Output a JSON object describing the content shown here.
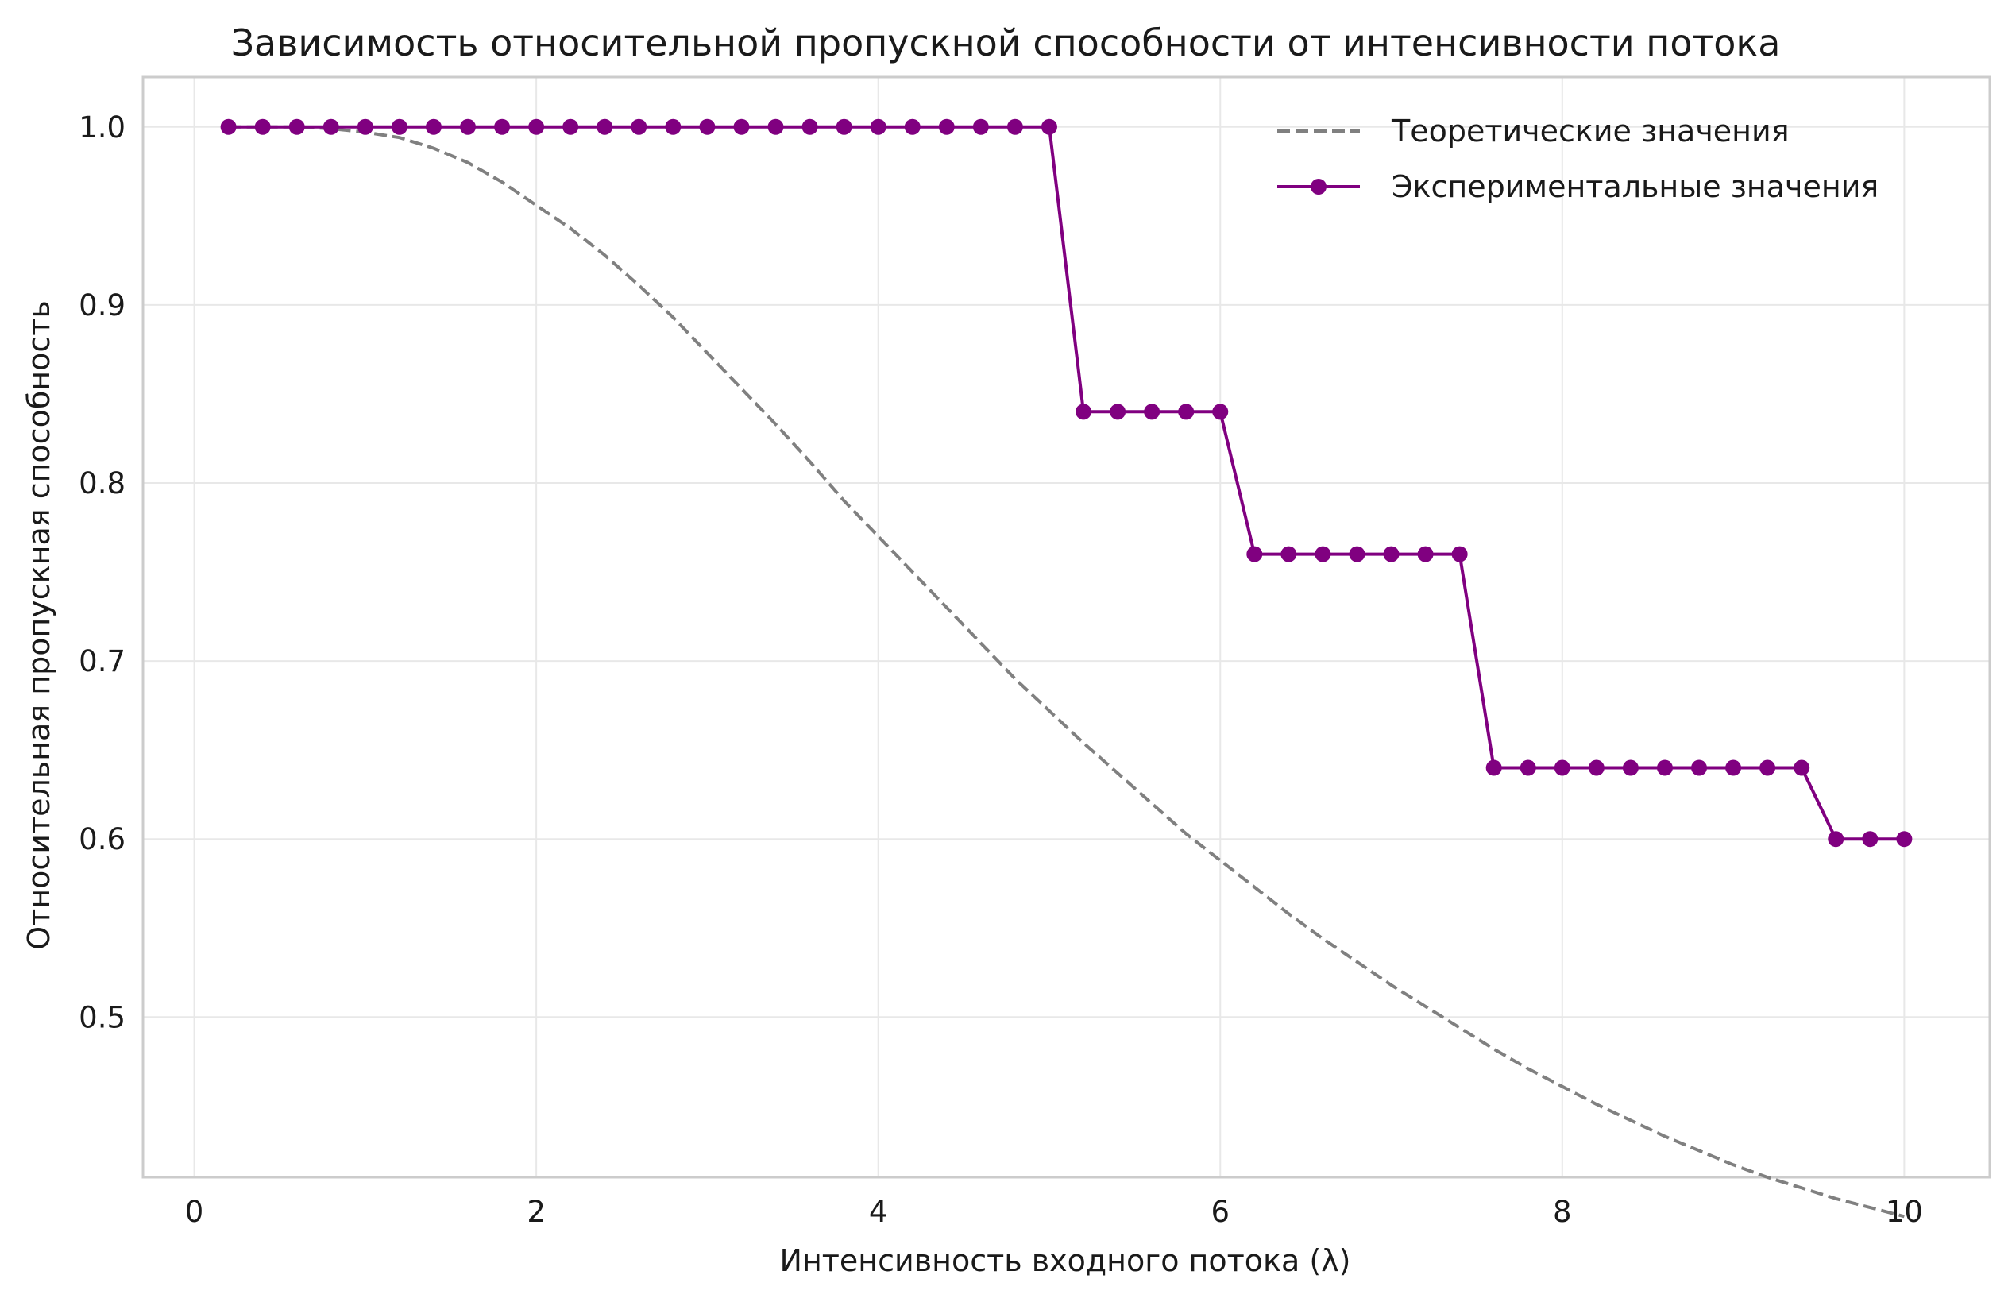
{
  "chart_data": {
    "type": "line",
    "title": "Зависимость относительной пропускной способности от интенсивности потока",
    "xlabel": "Интенсивность входного потока (λ)",
    "ylabel": "Относительная пропускная способность",
    "xlim": [
      -0.3,
      10.5
    ],
    "ylim": [
      0.41,
      1.028
    ],
    "xticks": [
      0,
      2,
      4,
      6,
      8,
      10
    ],
    "xtick_labels": [
      "0",
      "2",
      "4",
      "6",
      "8",
      "10"
    ],
    "yticks": [
      0.5,
      0.6,
      0.7,
      0.8,
      0.9,
      1.0
    ],
    "ytick_labels": [
      "0.5",
      "0.6",
      "0.7",
      "0.8",
      "0.9",
      "1.0"
    ],
    "grid": true,
    "legend_position": "top-right",
    "colors": {
      "theoretical": "#808080",
      "experimental": "#800080"
    },
    "series": [
      {
        "name": "Теоретические значения",
        "style": "dashed",
        "x": [
          0.2,
          0.4,
          0.6,
          0.8,
          1.0,
          1.2,
          1.4,
          1.6,
          1.8,
          2.0,
          2.2,
          2.4,
          2.6,
          2.8,
          3.0,
          3.2,
          3.4,
          3.6,
          3.8,
          4.0,
          4.2,
          4.4,
          4.6,
          4.8,
          5.0,
          5.2,
          5.4,
          5.6,
          5.8,
          6.0,
          6.2,
          6.4,
          6.6,
          6.8,
          7.0,
          7.2,
          7.4,
          7.6,
          7.8,
          8.0,
          8.2,
          8.4,
          8.6,
          8.8,
          9.0,
          9.2,
          9.4,
          9.6,
          9.8,
          10.0
        ],
        "y": [
          1.0,
          1.0,
          1.0,
          0.999,
          0.997,
          0.994,
          0.988,
          0.98,
          0.969,
          0.956,
          0.943,
          0.928,
          0.911,
          0.893,
          0.873,
          0.853,
          0.833,
          0.812,
          0.79,
          0.77,
          0.75,
          0.73,
          0.71,
          0.69,
          0.672,
          0.654,
          0.637,
          0.62,
          0.603,
          0.588,
          0.573,
          0.558,
          0.544,
          0.531,
          0.518,
          0.506,
          0.494,
          0.482,
          0.471,
          0.461,
          0.451,
          0.442,
          0.433,
          0.425,
          0.417,
          0.41,
          0.404,
          0.398,
          0.393,
          0.388
        ]
      },
      {
        "name": "Экспериментальные значения",
        "style": "solid-markers",
        "x": [
          0.2,
          0.4,
          0.6,
          0.8,
          1.0,
          1.2,
          1.4,
          1.6,
          1.8,
          2.0,
          2.2,
          2.4,
          2.6,
          2.8,
          3.0,
          3.2,
          3.4,
          3.6,
          3.8,
          4.0,
          4.2,
          4.4,
          4.6,
          4.8,
          5.0,
          5.2,
          5.4,
          5.6,
          5.8,
          6.0,
          6.2,
          6.4,
          6.6,
          6.8,
          7.0,
          7.2,
          7.4,
          7.6,
          7.8,
          8.0,
          8.2,
          8.4,
          8.6,
          8.8,
          9.0,
          9.2,
          9.4,
          9.6,
          9.8,
          10.0
        ],
        "y": [
          1.0,
          1.0,
          1.0,
          1.0,
          1.0,
          1.0,
          1.0,
          1.0,
          1.0,
          1.0,
          1.0,
          1.0,
          1.0,
          1.0,
          1.0,
          1.0,
          1.0,
          1.0,
          1.0,
          1.0,
          1.0,
          1.0,
          1.0,
          1.0,
          1.0,
          0.84,
          0.84,
          0.84,
          0.84,
          0.84,
          0.76,
          0.76,
          0.76,
          0.76,
          0.76,
          0.76,
          0.76,
          0.64,
          0.64,
          0.64,
          0.64,
          0.64,
          0.64,
          0.64,
          0.64,
          0.64,
          0.64,
          0.6,
          0.6,
          0.6
        ]
      }
    ]
  }
}
